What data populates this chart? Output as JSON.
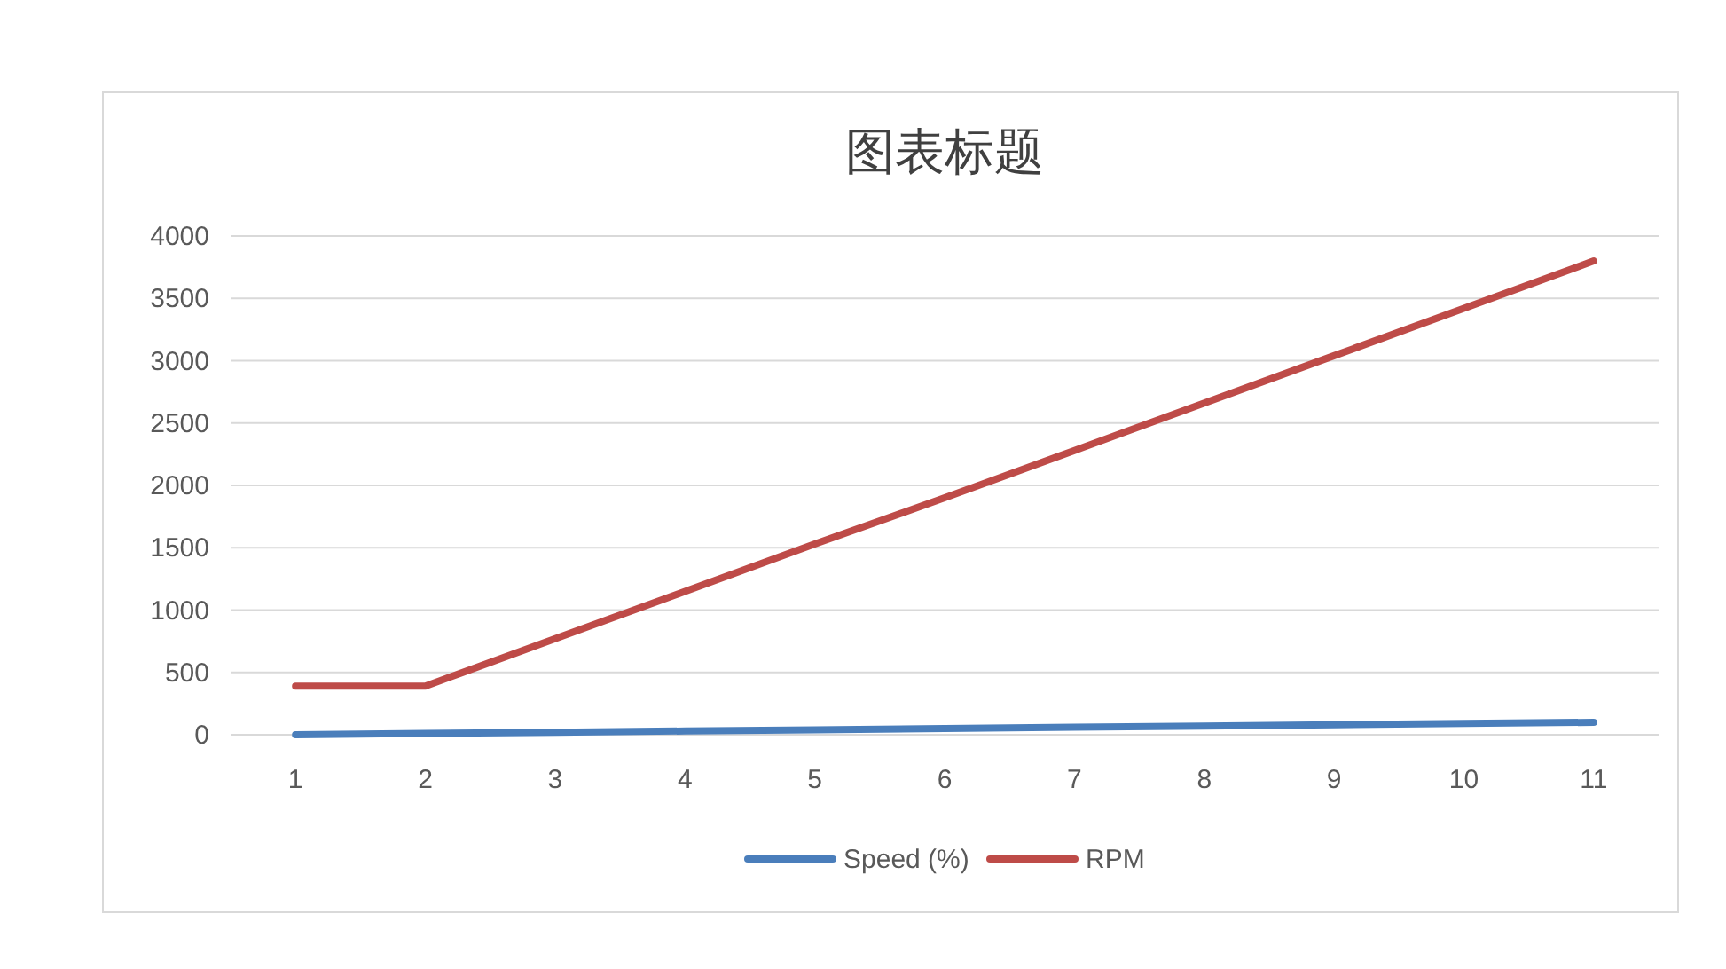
{
  "chart_data": {
    "type": "line",
    "title": "图表标题",
    "categories": [
      "1",
      "2",
      "3",
      "4",
      "5",
      "6",
      "7",
      "8",
      "9",
      "10",
      "11"
    ],
    "series": [
      {
        "name": "Speed (%)",
        "color": "#4a7ebb",
        "values": [
          0,
          10,
          20,
          30,
          40,
          50,
          60,
          70,
          80,
          90,
          100
        ]
      },
      {
        "name": "RPM",
        "color": "#be4b48",
        "values": [
          390,
          390,
          770,
          1150,
          1530,
          1900,
          2280,
          2660,
          3040,
          3420,
          3800
        ]
      }
    ],
    "ylim": [
      0,
      4000
    ],
    "yticks": [
      0,
      500,
      1000,
      1500,
      2000,
      2500,
      3000,
      3500,
      4000
    ],
    "grid": "y",
    "legend": "bottom",
    "marker": "none",
    "line_style": "solid"
  }
}
